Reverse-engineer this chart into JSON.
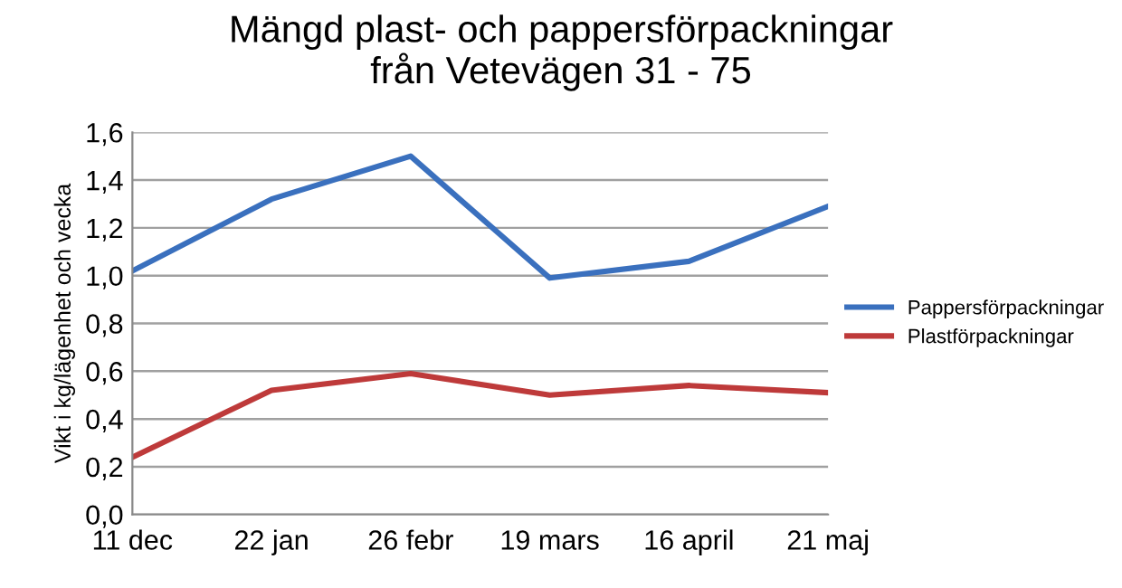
{
  "chart_data": {
    "type": "line",
    "title": "Mängd plast- och pappersförpackningar\nfrån Vetevägen 31 - 75",
    "ylabel": "Vikt i kg/lägenhet och vecka",
    "categories": [
      "11 dec",
      "22 jan",
      "26 febr",
      "19 mars",
      "16 april",
      "21 maj"
    ],
    "series": [
      {
        "name": "Pappersförpackningar",
        "color": "#3a70be",
        "values": [
          1.02,
          1.32,
          1.5,
          0.99,
          1.06,
          1.29
        ]
      },
      {
        "name": "Plastförpackningar",
        "color": "#be3a3a",
        "values": [
          0.24,
          0.52,
          0.59,
          0.5,
          0.54,
          0.51
        ]
      }
    ],
    "ylim": [
      0,
      1.6
    ],
    "yticks": [
      {
        "value": 0,
        "label": "0,0"
      },
      {
        "value": 0.2,
        "label": "0,2"
      },
      {
        "value": 0.4,
        "label": "0,4"
      },
      {
        "value": 0.6,
        "label": "0,6"
      },
      {
        "value": 0.8,
        "label": "0,8"
      },
      {
        "value": 1.0,
        "label": "1,0"
      },
      {
        "value": 1.2,
        "label": "1,2"
      },
      {
        "value": 1.4,
        "label": "1,4"
      },
      {
        "value": 1.6,
        "label": "1,6"
      }
    ],
    "grid": "y",
    "legend": "right",
    "marker": "none",
    "line_style": "solid"
  }
}
